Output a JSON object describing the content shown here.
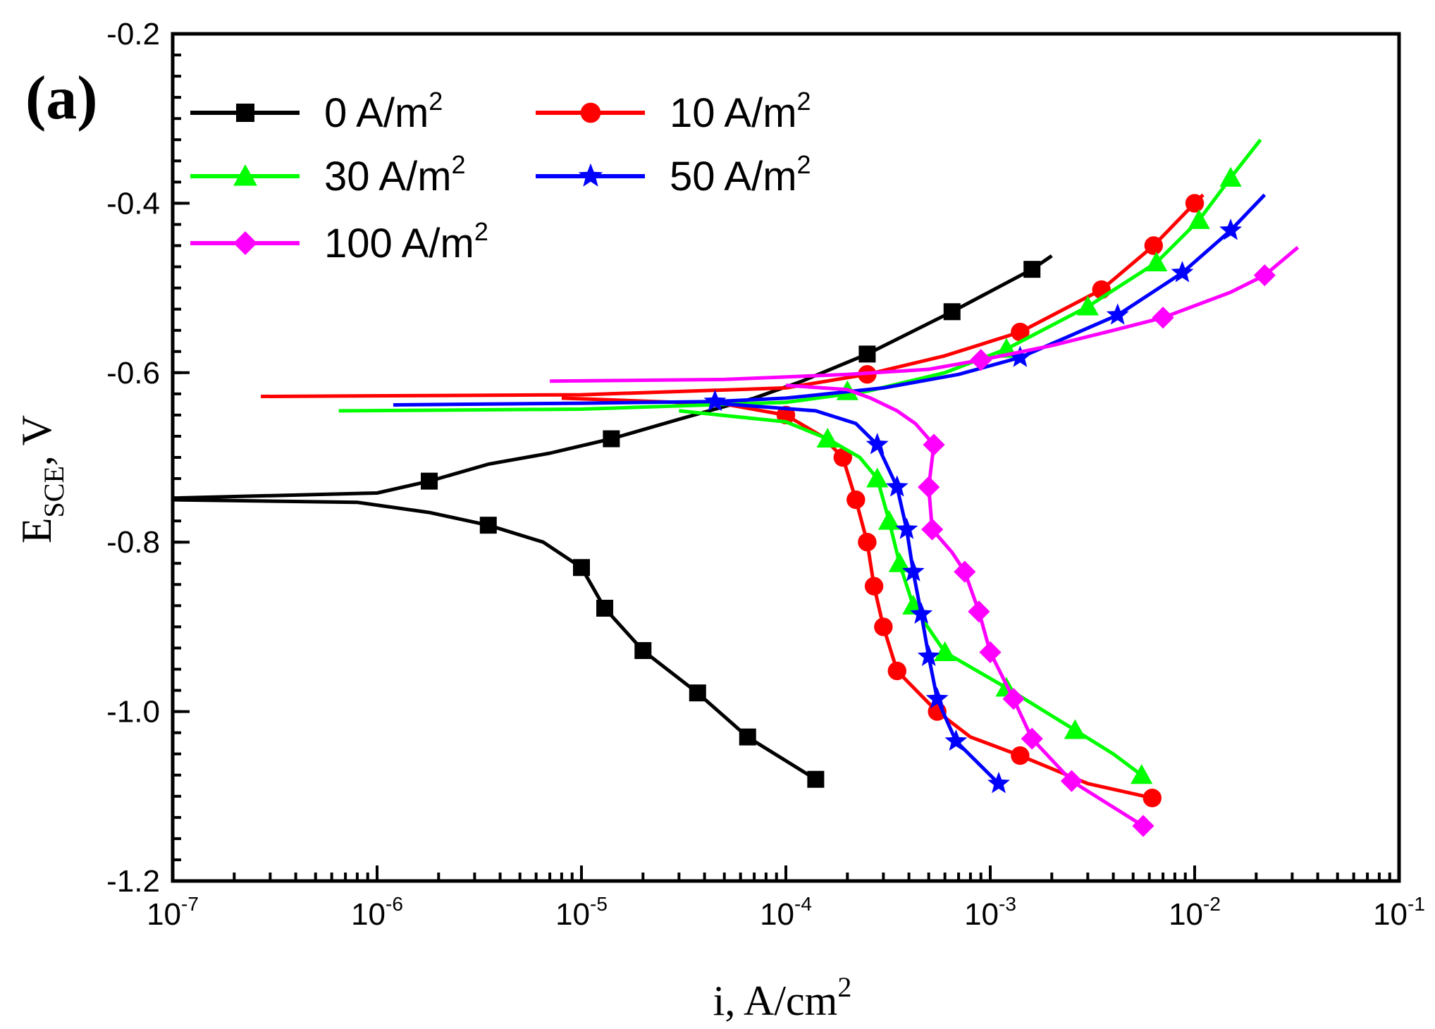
{
  "chart_data": {
    "type": "line",
    "panel_label": "(a)",
    "xscale": "log",
    "xlim": [
      1e-07,
      0.1
    ],
    "ylim": [
      -1.2,
      -0.2
    ],
    "xlabel": {
      "main": "i, A/cm",
      "sup": "2"
    },
    "ylabel": {
      "main": "E",
      "sub": "SCE",
      "suffix": ", V"
    },
    "x_ticks": [
      {
        "value": 1e-07,
        "base": "10",
        "exp": "-7"
      },
      {
        "value": 1e-06,
        "base": "10",
        "exp": "-6"
      },
      {
        "value": 1e-05,
        "base": "10",
        "exp": "-5"
      },
      {
        "value": 0.0001,
        "base": "10",
        "exp": "-4"
      },
      {
        "value": 0.001,
        "base": "10",
        "exp": "-3"
      },
      {
        "value": 0.01,
        "base": "10",
        "exp": "-2"
      },
      {
        "value": 0.1,
        "base": "10",
        "exp": "-1"
      }
    ],
    "y_ticks": [
      {
        "value": -0.2,
        "label": "-0.2"
      },
      {
        "value": -0.4,
        "label": "-0.4"
      },
      {
        "value": -0.6,
        "label": "-0.6"
      },
      {
        "value": -0.8,
        "label": "-0.8"
      },
      {
        "value": -1.0,
        "label": "-1.0"
      },
      {
        "value": -1.2,
        "label": "-1.2"
      }
    ],
    "legend_position": "top-left",
    "series": [
      {
        "name": "0 A/m",
        "sup": "2",
        "color": "#000000",
        "marker": "square",
        "line": [
          [
            1e-07,
            -0.748
          ],
          [
            1e-06,
            -0.742
          ],
          [
            1.8e-06,
            -0.728
          ],
          [
            3.5e-06,
            -0.708
          ],
          [
            7e-06,
            -0.695
          ],
          [
            1.4e-05,
            -0.678
          ],
          [
            3e-05,
            -0.655
          ],
          [
            7e-05,
            -0.63
          ],
          [
            0.00012,
            -0.61
          ],
          [
            0.00025,
            -0.578
          ],
          [
            0.00065,
            -0.528
          ],
          [
            0.0016,
            -0.478
          ],
          [
            0.002,
            -0.462
          ]
        ],
        "line2": [
          [
            1e-07,
            -0.75
          ],
          [
            8e-07,
            -0.753
          ],
          [
            1.8e-06,
            -0.765
          ],
          [
            3.5e-06,
            -0.78
          ],
          [
            6.5e-06,
            -0.8
          ],
          [
            1e-05,
            -0.83
          ],
          [
            1.3e-05,
            -0.878
          ],
          [
            2e-05,
            -0.928
          ],
          [
            3.7e-05,
            -0.978
          ],
          [
            6.5e-05,
            -1.03
          ],
          [
            0.00014,
            -1.08
          ]
        ],
        "markers": [
          [
            1.8e-06,
            -0.728
          ],
          [
            1.4e-05,
            -0.678
          ],
          [
            0.00025,
            -0.578
          ],
          [
            0.00065,
            -0.528
          ],
          [
            0.0016,
            -0.478
          ],
          [
            3.5e-06,
            -0.78
          ],
          [
            1e-05,
            -0.83
          ],
          [
            1.3e-05,
            -0.878
          ],
          [
            2e-05,
            -0.928
          ],
          [
            3.7e-05,
            -0.978
          ],
          [
            6.5e-05,
            -1.03
          ],
          [
            0.00014,
            -1.08
          ]
        ]
      },
      {
        "name": "10 A/m",
        "sup": "2",
        "color": "#ff0000",
        "marker": "circle",
        "line": [
          [
            2.7e-07,
            -0.628
          ],
          [
            1e-05,
            -0.626
          ],
          [
            0.0001,
            -0.618
          ],
          [
            0.00025,
            -0.602
          ],
          [
            0.0006,
            -0.58
          ],
          [
            0.0014,
            -0.552
          ],
          [
            0.0035,
            -0.502
          ],
          [
            0.0063,
            -0.45
          ],
          [
            0.01,
            -0.4
          ],
          [
            0.011,
            -0.39
          ]
        ],
        "line2": [
          [
            8e-06,
            -0.63
          ],
          [
            5e-05,
            -0.637
          ],
          [
            0.0001,
            -0.65
          ],
          [
            0.00015,
            -0.675
          ],
          [
            0.00019,
            -0.7
          ],
          [
            0.00022,
            -0.75
          ],
          [
            0.00025,
            -0.8
          ],
          [
            0.00027,
            -0.852
          ],
          [
            0.0003,
            -0.9
          ],
          [
            0.00035,
            -0.952
          ],
          [
            0.0005,
            -0.99
          ],
          [
            0.00055,
            -1.0
          ],
          [
            0.0008,
            -1.03
          ],
          [
            0.0014,
            -1.052
          ],
          [
            0.003,
            -1.085
          ],
          [
            0.0062,
            -1.102
          ]
        ],
        "markers": [
          [
            0.00025,
            -0.602
          ],
          [
            0.0014,
            -0.552
          ],
          [
            0.0035,
            -0.502
          ],
          [
            0.0063,
            -0.45
          ],
          [
            0.01,
            -0.4
          ],
          [
            0.0001,
            -0.65
          ],
          [
            0.00019,
            -0.7
          ],
          [
            0.00022,
            -0.75
          ],
          [
            0.00025,
            -0.8
          ],
          [
            0.00027,
            -0.852
          ],
          [
            0.0003,
            -0.9
          ],
          [
            0.00035,
            -0.952
          ],
          [
            0.00055,
            -1.0
          ],
          [
            0.0014,
            -1.052
          ],
          [
            0.0062,
            -1.102
          ]
        ]
      },
      {
        "name": "30 A/m",
        "sup": "2",
        "color": "#00ff00",
        "marker": "triangle",
        "line": [
          [
            6.5e-07,
            -0.645
          ],
          [
            1e-05,
            -0.643
          ],
          [
            0.0001,
            -0.635
          ],
          [
            0.00025,
            -0.622
          ],
          [
            0.0006,
            -0.6
          ],
          [
            0.0012,
            -0.572
          ],
          [
            0.003,
            -0.522
          ],
          [
            0.0065,
            -0.47
          ],
          [
            0.0105,
            -0.42
          ],
          [
            0.015,
            -0.37
          ],
          [
            0.021,
            -0.325
          ]
        ],
        "line2": [
          [
            3e-05,
            -0.645
          ],
          [
            0.0001,
            -0.658
          ],
          [
            0.00016,
            -0.678
          ],
          [
            0.00023,
            -0.7
          ],
          [
            0.00028,
            -0.725
          ],
          [
            0.00032,
            -0.775
          ],
          [
            0.00036,
            -0.825
          ],
          [
            0.00042,
            -0.875
          ],
          [
            0.0006,
            -0.93
          ],
          [
            0.0012,
            -0.972
          ],
          [
            0.0026,
            -1.022
          ],
          [
            0.004,
            -1.05
          ],
          [
            0.0055,
            -1.075
          ]
        ],
        "markers": [
          [
            0.0002,
            -0.622
          ],
          [
            0.0012,
            -0.572
          ],
          [
            0.003,
            -0.522
          ],
          [
            0.0065,
            -0.47
          ],
          [
            0.0105,
            -0.42
          ],
          [
            0.015,
            -0.37
          ],
          [
            0.00016,
            -0.678
          ],
          [
            0.00028,
            -0.725
          ],
          [
            0.00032,
            -0.775
          ],
          [
            0.00036,
            -0.825
          ],
          [
            0.00042,
            -0.875
          ],
          [
            0.0006,
            -0.93
          ],
          [
            0.0012,
            -0.972
          ],
          [
            0.0026,
            -1.022
          ],
          [
            0.0055,
            -1.075
          ]
        ]
      },
      {
        "name": "50 A/m",
        "sup": "2",
        "color": "#0000ff",
        "marker": "star",
        "line": [
          [
            1.2e-06,
            -0.638
          ],
          [
            1e-05,
            -0.636
          ],
          [
            4.5e-05,
            -0.634
          ],
          [
            0.0001,
            -0.63
          ],
          [
            0.0003,
            -0.618
          ],
          [
            0.0007,
            -0.602
          ],
          [
            0.0014,
            -0.582
          ],
          [
            0.0042,
            -0.532
          ],
          [
            0.0087,
            -0.482
          ],
          [
            0.015,
            -0.432
          ],
          [
            0.022,
            -0.39
          ]
        ],
        "line2": [
          [
            4.5e-05,
            -0.636
          ],
          [
            0.00014,
            -0.645
          ],
          [
            0.00022,
            -0.66
          ],
          [
            0.00028,
            -0.685
          ],
          [
            0.00035,
            -0.735
          ],
          [
            0.00039,
            -0.785
          ],
          [
            0.00042,
            -0.835
          ],
          [
            0.00046,
            -0.885
          ],
          [
            0.0005,
            -0.935
          ],
          [
            0.00055,
            -0.985
          ],
          [
            0.00068,
            -1.035
          ],
          [
            0.0011,
            -1.085
          ]
        ],
        "markers": [
          [
            4.5e-05,
            -0.634
          ],
          [
            0.0014,
            -0.582
          ],
          [
            0.0042,
            -0.532
          ],
          [
            0.0087,
            -0.482
          ],
          [
            0.015,
            -0.432
          ],
          [
            0.00028,
            -0.685
          ],
          [
            0.00035,
            -0.735
          ],
          [
            0.00039,
            -0.785
          ],
          [
            0.00042,
            -0.835
          ],
          [
            0.00046,
            -0.885
          ],
          [
            0.0005,
            -0.935
          ],
          [
            0.00055,
            -0.985
          ],
          [
            0.00068,
            -1.035
          ],
          [
            0.0011,
            -1.085
          ]
        ]
      },
      {
        "name": "100 A/m",
        "sup": "2",
        "color": "#ff00ff",
        "marker": "diamond",
        "line": [
          [
            7e-06,
            -0.61
          ],
          [
            5e-05,
            -0.608
          ],
          [
            0.0002,
            -0.602
          ],
          [
            0.0005,
            -0.596
          ],
          [
            0.0009,
            -0.585
          ],
          [
            0.002,
            -0.568
          ],
          [
            0.004,
            -0.55
          ],
          [
            0.007,
            -0.535
          ],
          [
            0.015,
            -0.505
          ],
          [
            0.022,
            -0.485
          ],
          [
            0.032,
            -0.452
          ]
        ],
        "line2": [
          [
            0.0001,
            -0.615
          ],
          [
            0.0002,
            -0.62
          ],
          [
            0.00026,
            -0.63
          ],
          [
            0.00035,
            -0.645
          ],
          [
            0.00043,
            -0.66
          ],
          [
            0.00053,
            -0.685
          ],
          [
            0.0005,
            -0.735
          ],
          [
            0.00052,
            -0.785
          ],
          [
            0.00065,
            -0.812
          ],
          [
            0.00075,
            -0.835
          ],
          [
            0.00088,
            -0.882
          ],
          [
            0.001,
            -0.93
          ],
          [
            0.0013,
            -0.985
          ],
          [
            0.0016,
            -1.032
          ],
          [
            0.0025,
            -1.082
          ],
          [
            0.0056,
            -1.135
          ]
        ],
        "markers": [
          [
            0.0009,
            -0.585
          ],
          [
            0.007,
            -0.535
          ],
          [
            0.022,
            -0.485
          ],
          [
            0.00053,
            -0.685
          ],
          [
            0.0005,
            -0.735
          ],
          [
            0.00052,
            -0.785
          ],
          [
            0.00075,
            -0.835
          ],
          [
            0.00088,
            -0.882
          ],
          [
            0.001,
            -0.93
          ],
          [
            0.0013,
            -0.985
          ],
          [
            0.0016,
            -1.032
          ],
          [
            0.0025,
            -1.082
          ],
          [
            0.0056,
            -1.135
          ]
        ]
      }
    ]
  }
}
